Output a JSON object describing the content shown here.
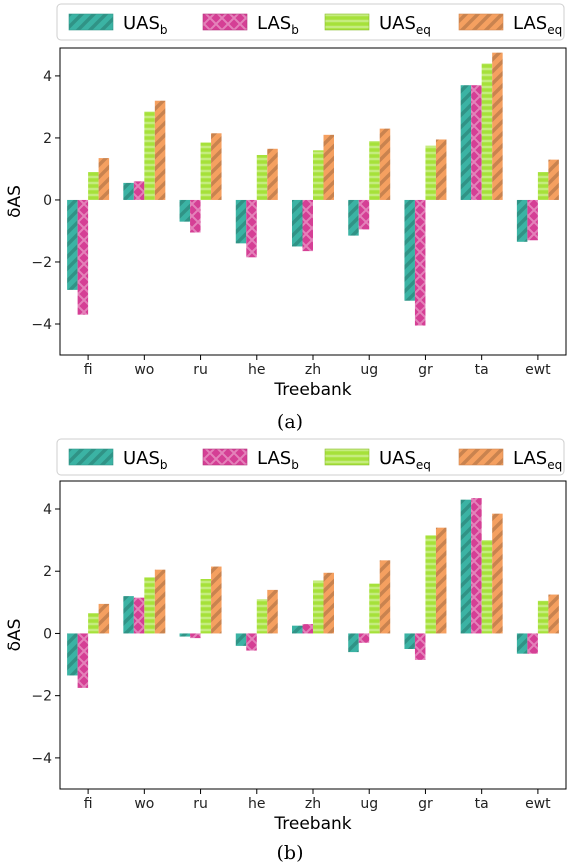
{
  "figure": {
    "legend_entries": [
      {
        "base": "UAS",
        "sub": "b",
        "color": "#3bb3a4",
        "hatch": "diag"
      },
      {
        "base": "LAS",
        "sub": "b",
        "color": "#d53f95",
        "hatch": "cross"
      },
      {
        "base": "UAS",
        "sub": "eq",
        "color": "#a6e13a",
        "hatch": "horiz"
      },
      {
        "base": "LAS",
        "sub": "eq",
        "color": "#f5a060",
        "hatch": "diag"
      }
    ]
  },
  "chart_data": [
    {
      "type": "bar",
      "caption": "(a)",
      "xlabel": "Treebank",
      "ylabel": "δAS",
      "categories": [
        "fi",
        "wo",
        "ru",
        "he",
        "zh",
        "ug",
        "gr",
        "ta",
        "ewt"
      ],
      "ylim": [
        -5,
        4.9
      ],
      "yticks": [
        -4,
        -2,
        0,
        2,
        4
      ],
      "legend_position": "top",
      "grid": false,
      "series": [
        {
          "name": "UAS_b",
          "values": [
            -2.9,
            0.55,
            -0.7,
            -1.4,
            -1.5,
            -1.15,
            -3.25,
            3.7,
            -1.35
          ]
        },
        {
          "name": "LAS_b",
          "values": [
            -3.7,
            0.6,
            -1.05,
            -1.85,
            -1.65,
            -0.95,
            -4.05,
            3.7,
            -1.3
          ]
        },
        {
          "name": "UAS_eq",
          "values": [
            0.9,
            2.85,
            1.85,
            1.45,
            1.6,
            1.9,
            1.75,
            4.4,
            0.9
          ]
        },
        {
          "name": "LAS_eq",
          "values": [
            1.35,
            3.2,
            2.15,
            1.65,
            2.1,
            2.3,
            1.95,
            4.75,
            1.3
          ]
        }
      ]
    },
    {
      "type": "bar",
      "caption": "(b)",
      "xlabel": "Treebank",
      "ylabel": "δAS",
      "categories": [
        "fi",
        "wo",
        "ru",
        "he",
        "zh",
        "ug",
        "gr",
        "ta",
        "ewt"
      ],
      "ylim": [
        -5,
        4.9
      ],
      "yticks": [
        -4,
        -2,
        0,
        2,
        4
      ],
      "legend_position": "top",
      "grid": false,
      "series": [
        {
          "name": "UAS_b",
          "values": [
            -1.35,
            1.2,
            -0.1,
            -0.4,
            0.25,
            -0.6,
            -0.5,
            4.3,
            -0.65
          ]
        },
        {
          "name": "LAS_b",
          "values": [
            -1.75,
            1.15,
            -0.15,
            -0.55,
            0.3,
            -0.3,
            -0.85,
            4.35,
            -0.65
          ]
        },
        {
          "name": "UAS_eq",
          "values": [
            0.65,
            1.8,
            1.75,
            1.1,
            1.7,
            1.6,
            3.15,
            3.0,
            1.05
          ]
        },
        {
          "name": "LAS_eq",
          "values": [
            0.95,
            2.05,
            2.15,
            1.4,
            1.95,
            2.35,
            3.4,
            3.85,
            1.25
          ]
        }
      ]
    }
  ]
}
